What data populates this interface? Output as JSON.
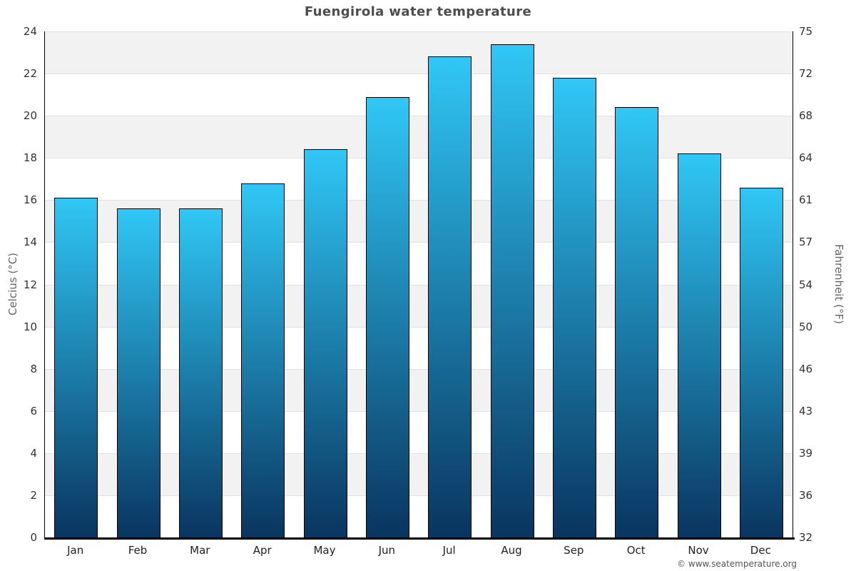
{
  "chart_data": {
    "type": "bar",
    "title": "Fuengirola water temperature",
    "categories": [
      "Jan",
      "Feb",
      "Mar",
      "Apr",
      "May",
      "Jun",
      "Jul",
      "Aug",
      "Sep",
      "Oct",
      "Nov",
      "Dec"
    ],
    "values": [
      16.1,
      15.6,
      15.6,
      16.8,
      18.4,
      20.9,
      22.8,
      23.4,
      21.8,
      20.4,
      18.2,
      16.6
    ],
    "xlabel": "",
    "ylabel_left": "Celcius (°C)",
    "ylabel_right": "Fahrenheit (°F)",
    "ylim_left": [
      0,
      24
    ],
    "yticks_left": [
      24,
      22,
      20,
      18,
      16,
      14,
      12,
      10,
      8,
      6,
      4,
      2,
      0
    ],
    "yticks_right": [
      75,
      72,
      68,
      64,
      61,
      57,
      54,
      50,
      46,
      43,
      39,
      36,
      32
    ],
    "grid": true,
    "legend": "none",
    "colors": {
      "bar_top": "#30c7f6",
      "bar_bottom": "#09355f",
      "bar_border": "#000000",
      "band": "#f2f2f2",
      "gridline": "#e2e2e2",
      "title_text": "#4d4d4d",
      "tick_text": "#333333",
      "axis_title_text": "#666666"
    }
  },
  "footer": {
    "copyright": "© www.seatemperature.org"
  }
}
